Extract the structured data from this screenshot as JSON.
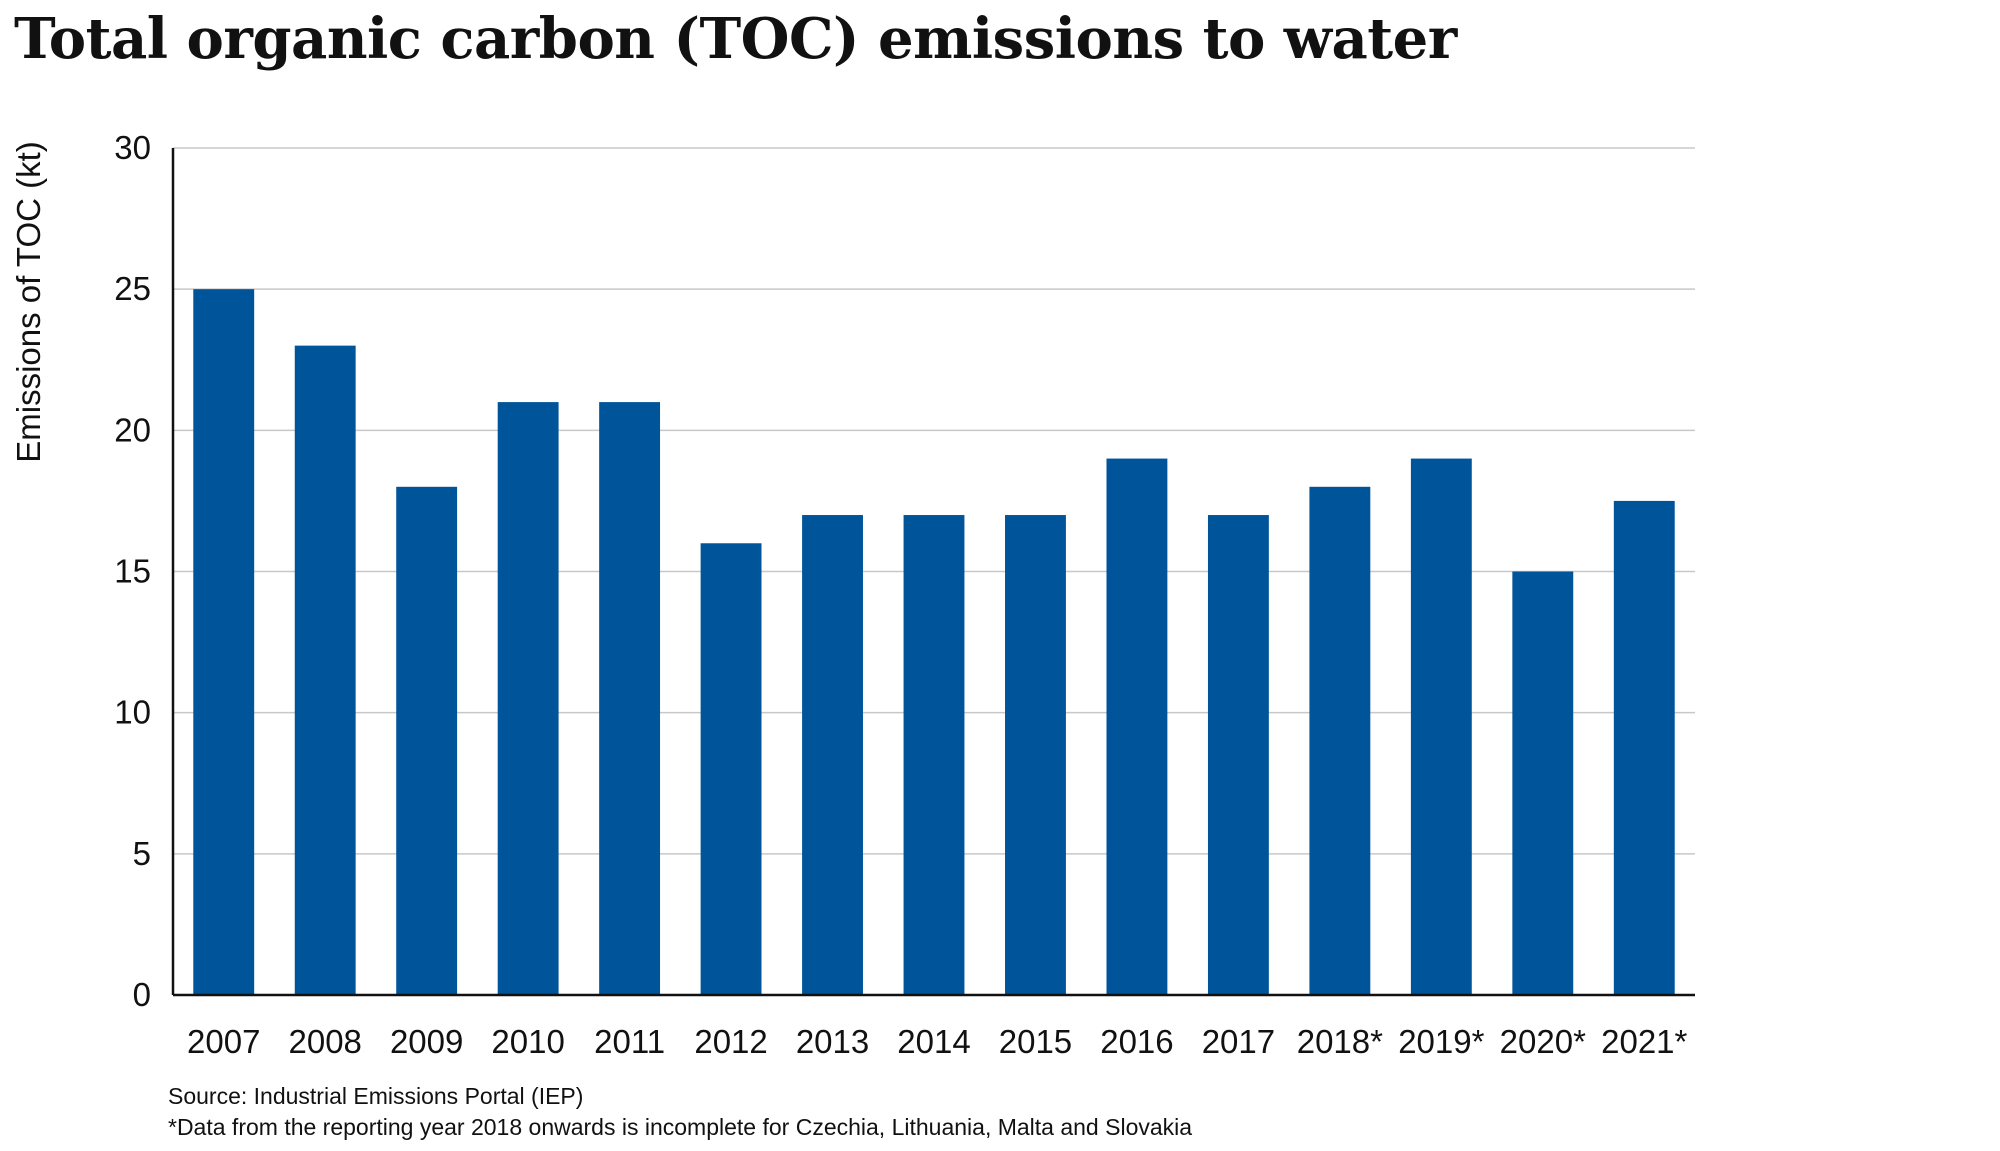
{
  "chart_data": {
    "type": "bar",
    "title": "Total organic carbon (TOC) emissions to water",
    "xlabel": "",
    "ylabel": "Emissions of TOC (kt)",
    "categories": [
      "2007",
      "2008",
      "2009",
      "2010",
      "2011",
      "2012",
      "2013",
      "2014",
      "2015",
      "2016",
      "2017",
      "2018*",
      "2019*",
      "2020*",
      "2021*"
    ],
    "values": [
      25,
      23,
      18,
      21,
      21,
      16,
      17,
      17,
      17,
      19,
      17,
      18,
      19,
      15,
      17.5
    ],
    "ylim": [
      0,
      30
    ],
    "yticks": [
      "0",
      "5",
      "10",
      "15",
      "20",
      "25",
      "30"
    ],
    "grid": true,
    "legend": "none",
    "bar_color": "#00549a",
    "grid_color": "#c8c8c8",
    "axis_color": "#111111"
  },
  "footer": {
    "source": "Source: Industrial Emissions Portal (IEP)",
    "note": "*Data from the reporting year 2018 onwards is incomplete for Czechia, Lithuania, Malta and Slovakia"
  }
}
